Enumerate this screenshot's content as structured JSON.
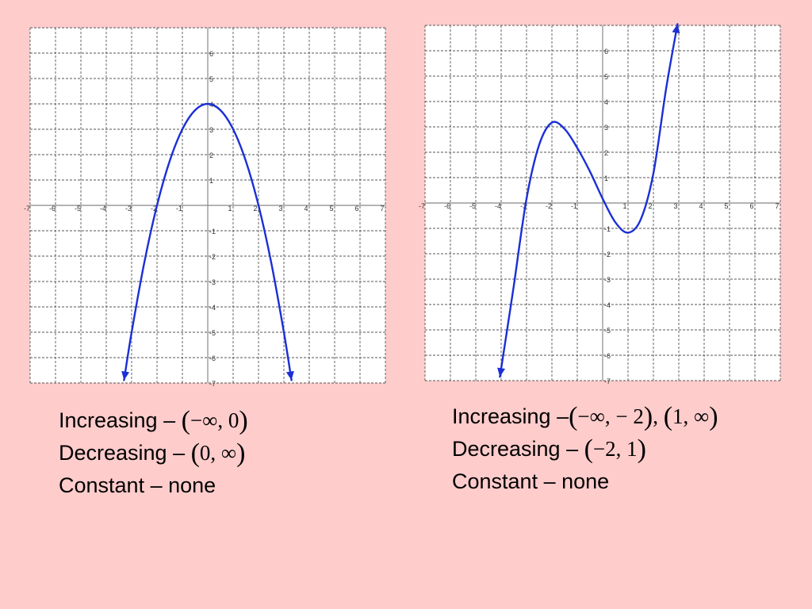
{
  "chart_data": [
    {
      "type": "line",
      "title": "",
      "xlabel": "",
      "ylabel": "",
      "xlim": [
        -7,
        7
      ],
      "ylim": [
        -7,
        7
      ],
      "grid": true,
      "x_ticks": [
        -7,
        -6,
        -5,
        -4,
        -3,
        -2,
        -1,
        1,
        2,
        3,
        4,
        5,
        6,
        7
      ],
      "y_ticks": [
        -7,
        -6,
        -5,
        -4,
        -3,
        -2,
        -1,
        1,
        2,
        3,
        4,
        5,
        6
      ],
      "x_tick_labels": [
        "-7",
        "-6",
        "-5",
        "-4",
        "-3",
        "-2",
        "-1",
        "1",
        "2",
        "3",
        "4",
        "5",
        "6",
        "7"
      ],
      "y_tick_labels": [
        "-7",
        "-6",
        "-5",
        "-4",
        "-3",
        "-2",
        "-1",
        "1",
        "2",
        "3",
        "4",
        "5",
        "6"
      ],
      "series": [
        {
          "color": "#1A2FD6",
          "arrows": "both-ends",
          "x": [
            -3.3,
            -3,
            -2.5,
            -2,
            -1.5,
            -1,
            -0.5,
            0,
            0.5,
            1,
            1.5,
            2,
            2.5,
            3,
            3.3
          ],
          "y": [
            -6.89,
            -5,
            -2.25,
            0,
            1.75,
            3,
            3.75,
            4,
            3.75,
            3,
            1.75,
            0,
            -2.25,
            -5,
            -6.89
          ]
        }
      ]
    },
    {
      "type": "line",
      "title": "",
      "xlabel": "",
      "ylabel": "",
      "xlim": [
        -7,
        7
      ],
      "ylim": [
        -7,
        7
      ],
      "grid": true,
      "x_ticks": [
        -7,
        -6,
        -5,
        -4,
        -3,
        -2,
        -1,
        1,
        2,
        3,
        4,
        5,
        6,
        7
      ],
      "y_ticks": [
        -7,
        -6,
        -5,
        -4,
        -3,
        -2,
        -1,
        1,
        2,
        3,
        4,
        5,
        6
      ],
      "x_tick_labels": [
        "-7",
        "-6",
        "-5",
        "-4",
        "-3",
        "-2",
        "-1",
        "1",
        "2",
        "3",
        "4",
        "5",
        "6",
        "7"
      ],
      "y_tick_labels": [
        "-7",
        "-6",
        "-5",
        "-4",
        "-3",
        "-2",
        "-1",
        "1",
        "2",
        "3",
        "4",
        "5",
        "6"
      ],
      "series": [
        {
          "color": "#1A2FD6",
          "arrows": "both-ends",
          "x": [
            -4.05,
            -3.75,
            -3.5,
            -3,
            -2.5,
            -2,
            -1.5,
            -1,
            -0.5,
            0,
            0.5,
            1,
            1.5,
            2,
            2.5,
            2.95
          ],
          "y": [
            -6.85,
            -4.9,
            -3.25,
            0.17,
            2.3,
            3.17,
            2.92,
            2.17,
            1.24,
            0.17,
            -0.76,
            -1.17,
            -0.65,
            1.17,
            4.5,
            7.05
          ]
        }
      ]
    }
  ],
  "captions": {
    "left": {
      "increasing_label": "Increasing – ",
      "increasing_interval": "−∞, 0",
      "decreasing_label": "Decreasing – ",
      "decreasing_interval": "0, ∞",
      "constant": "Constant – none"
    },
    "right": {
      "increasing_label": "Increasing –",
      "increasing_interval_1": "−∞, − 2",
      "increasing_interval_2": "1, ∞",
      "decreasing_label": "Decreasing – ",
      "decreasing_interval": "−2, 1",
      "constant": "Constant – none"
    }
  }
}
